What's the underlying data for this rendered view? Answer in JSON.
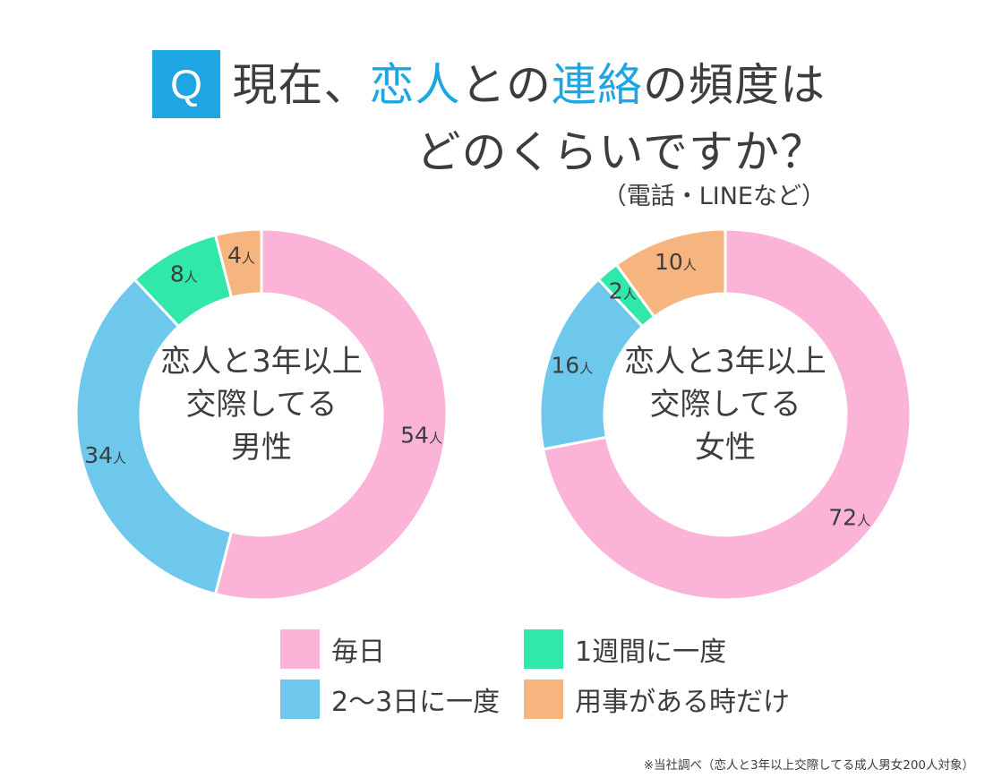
{
  "question": {
    "badge": "Q",
    "line1_a": "現在、",
    "line1_b": "恋人",
    "line1_c": "との",
    "line1_d": "連絡",
    "line1_e": "の頻度は",
    "line2": "どのくらいですか？",
    "note": "（電話・LINEなど）"
  },
  "chart_data": [
    {
      "type": "pie",
      "variant": "donut",
      "center_label": [
        "恋人と3年以上",
        "交際してる",
        "男性"
      ],
      "unit": "人",
      "categories": [
        "毎日",
        "2〜3日に一度",
        "1週間に一度",
        "用事がある時だけ"
      ],
      "values": [
        54,
        34,
        8,
        4
      ]
    },
    {
      "type": "pie",
      "variant": "donut",
      "center_label": [
        "恋人と3年以上",
        "交際してる",
        "女性"
      ],
      "unit": "人",
      "categories": [
        "毎日",
        "2〜3日に一度",
        "1週間に一度",
        "用事がある時だけ"
      ],
      "values": [
        72,
        16,
        2,
        10
      ]
    }
  ],
  "legend": [
    {
      "label": "毎日",
      "color": "#fcb3d8"
    },
    {
      "label": "1週間に一度",
      "color": "#2fe8a9"
    },
    {
      "label": "2〜3日に一度",
      "color": "#6ec8ec"
    },
    {
      "label": "用事がある時だけ",
      "color": "#f6b47f"
    }
  ],
  "colors": [
    "#fcb3d8",
    "#6ec8ec",
    "#2fe8a9",
    "#f6b47f"
  ],
  "footnote": "※当社調べ（恋人と3年以上交際してる成人男女200人対象）"
}
